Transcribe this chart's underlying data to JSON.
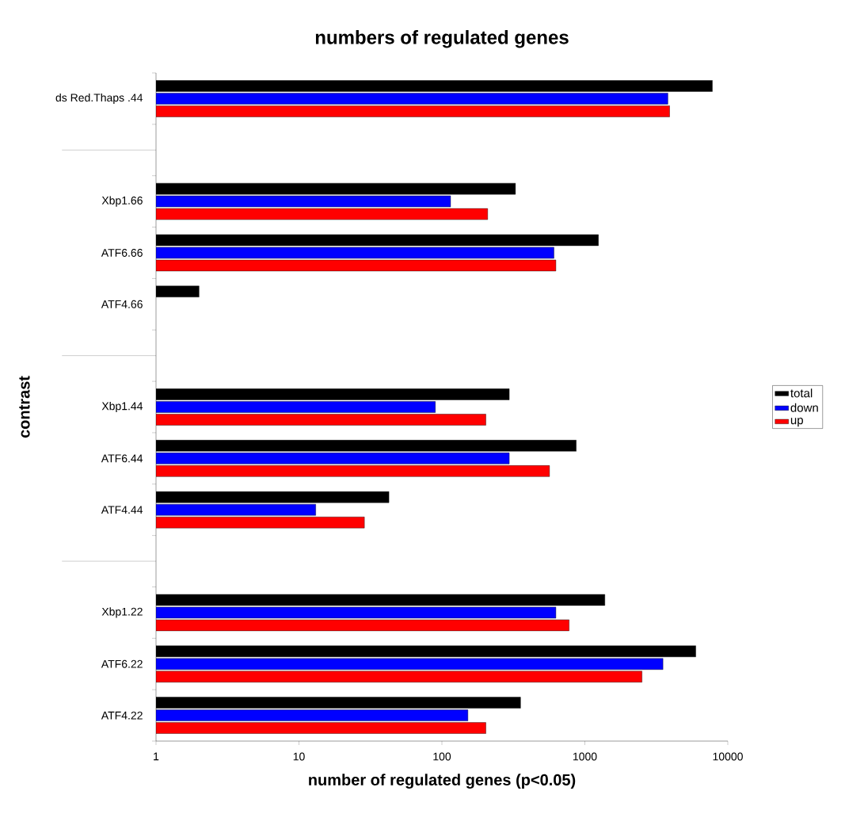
{
  "chart_data": {
    "type": "bar",
    "orientation": "horizontal",
    "title": "numbers of regulated genes",
    "xlabel": "number of regulated genes (p<0.05)",
    "ylabel": "contrast",
    "categories": [
      "ds Red.Thaps .44",
      null,
      "Xbp1.66",
      "ATF6.66",
      "ATF4.66",
      null,
      "Xbp1.44",
      "ATF6.44",
      "ATF4.44",
      null,
      "Xbp1.22",
      "ATF6.22",
      "ATF4.22"
    ],
    "log": "x",
    "xlim": [
      1,
      10000
    ],
    "xticks": [
      1,
      10,
      100,
      1000,
      10000
    ],
    "legend": "right",
    "grid": false,
    "series": [
      {
        "name": "total",
        "color": "#000000",
        "values": [
          7800,
          null,
          327,
          1245,
          2.0,
          null,
          296,
          870,
          42.6,
          null,
          1380,
          5970,
          355
        ]
      },
      {
        "name": "down",
        "color": "#0000ff",
        "values": [
          3810,
          null,
          115,
          608,
          null,
          null,
          90,
          296,
          13.1,
          null,
          627,
          3520,
          152
        ]
      },
      {
        "name": "up",
        "color": "#ff0000",
        "values": [
          3920,
          null,
          209,
          627,
          null,
          null,
          203,
          566,
          28.7,
          null,
          776,
          2510,
          203
        ]
      }
    ]
  }
}
